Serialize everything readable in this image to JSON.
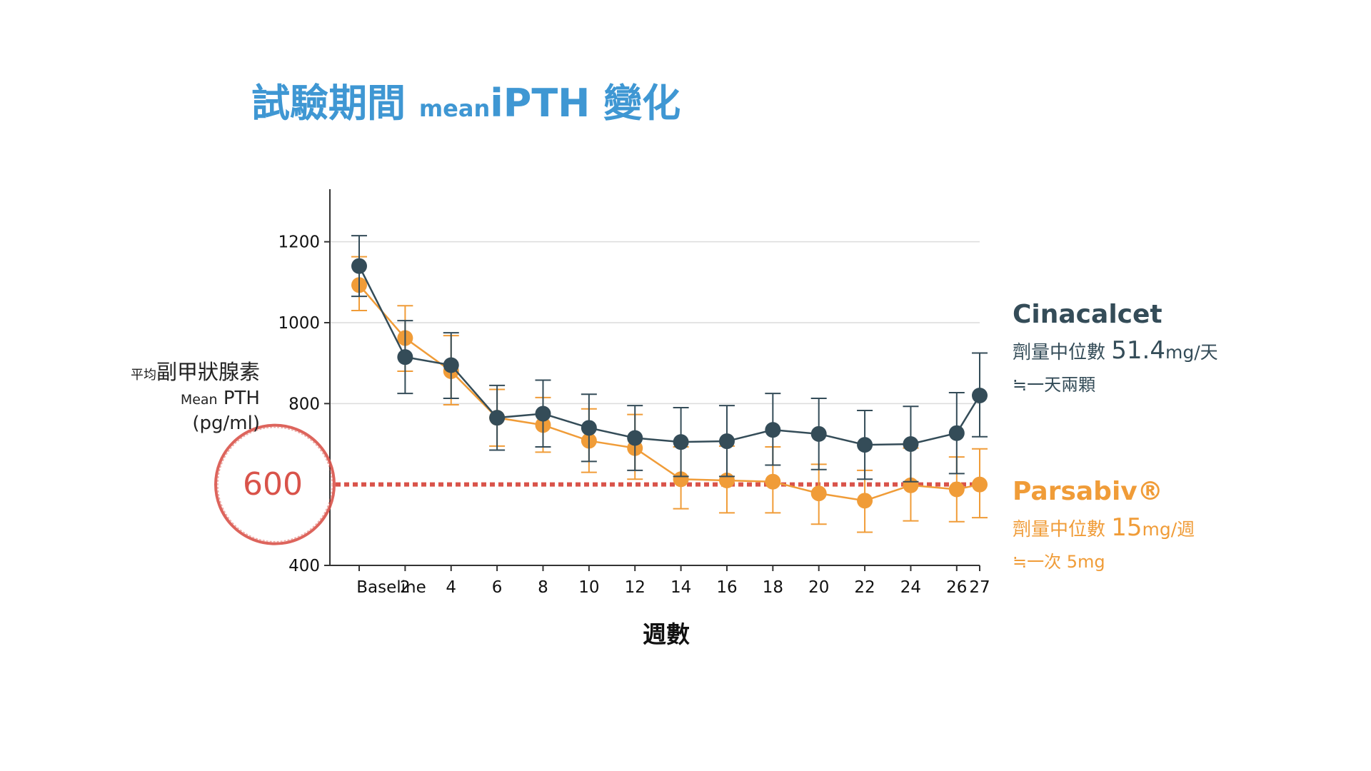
{
  "title": {
    "main": "試驗期間 ",
    "small": "mean",
    "suffix": "iPTH 變化"
  },
  "y_axis": {
    "label_small": "平均",
    "label_zh": "副甲狀腺素",
    "label_en_small": "Mean",
    "label_en": " PTH",
    "unit": "(pg/ml)"
  },
  "x_axis": {
    "label": "週數"
  },
  "target": {
    "label": "600",
    "value": 600,
    "color": "#d9534a"
  },
  "legend": {
    "cinacalcet": {
      "name": "Cinacalcet",
      "dose_prefix": "劑量中位數 ",
      "dose_value": "51.4",
      "dose_unit": "mg/天",
      "note": "≒一天兩顆",
      "color": "#344c58"
    },
    "parsabiv": {
      "name": "Parsabiv®",
      "dose_prefix": "劑量中位數 ",
      "dose_value": "15",
      "dose_unit": "mg/週",
      "note": "≒一次 5mg",
      "color": "#f09c38"
    }
  },
  "chart_data": {
    "type": "line",
    "title": "試驗期間 meaniPTH 變化",
    "xlabel": "週數",
    "ylabel": "平均副甲狀腺素 Mean PTH (pg/ml)",
    "categories": [
      "Baseline",
      "2",
      "4",
      "6",
      "8",
      "10",
      "12",
      "14",
      "16",
      "18",
      "20",
      "22",
      "24",
      "26",
      "27"
    ],
    "x": [
      0,
      2,
      4,
      6,
      8,
      10,
      12,
      14,
      16,
      18,
      20,
      22,
      24,
      26,
      27
    ],
    "ylim": [
      400,
      1330
    ],
    "yticks": [
      400,
      800,
      1000,
      1200
    ],
    "grid": true,
    "series": [
      {
        "name": "Cinacalcet",
        "color": "#344c58",
        "values": [
          1140,
          915,
          895,
          765,
          775,
          740,
          715,
          705,
          707,
          735,
          725,
          698,
          700,
          727,
          820
        ],
        "err_high": [
          1215,
          1005,
          975,
          845,
          858,
          823,
          795,
          790,
          795,
          825,
          813,
          783,
          793,
          827,
          925
        ],
        "err_low": [
          1065,
          825,
          813,
          685,
          693,
          657,
          635,
          620,
          620,
          648,
          637,
          613,
          607,
          627,
          718
        ]
      },
      {
        "name": "Parsabiv®",
        "color": "#f09c38",
        "values": [
          1093,
          962,
          880,
          765,
          747,
          708,
          690,
          613,
          610,
          607,
          578,
          560,
          598,
          588,
          600
        ],
        "err_high": [
          1163,
          1042,
          968,
          835,
          815,
          787,
          773,
          693,
          695,
          693,
          650,
          635,
          690,
          668,
          688
        ],
        "err_low": [
          1030,
          880,
          797,
          695,
          680,
          630,
          613,
          540,
          530,
          530,
          502,
          482,
          510,
          508,
          518
        ]
      }
    ]
  }
}
